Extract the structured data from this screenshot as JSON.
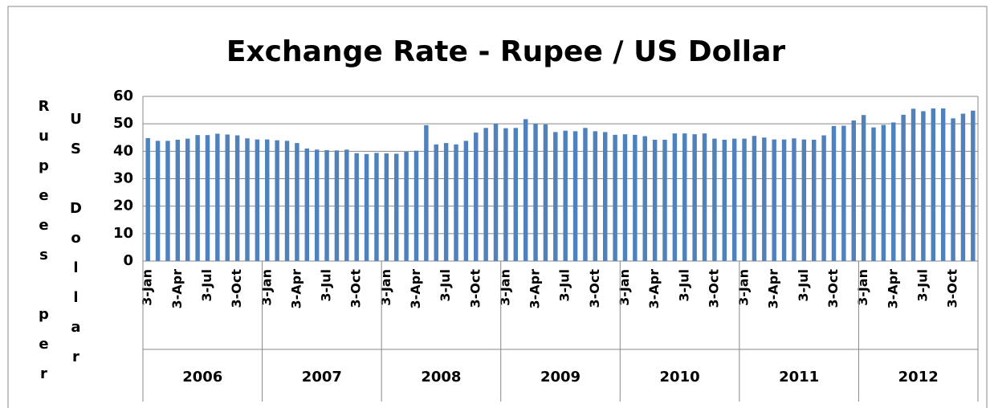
{
  "chart_data": {
    "type": "bar",
    "title": "Exchange Rate - Rupee / US Dollar",
    "ylabel": [
      "Rupees per",
      "US Dollar"
    ],
    "groups": [
      "2006",
      "2007",
      "2008",
      "2009",
      "2010",
      "2011",
      "2012"
    ],
    "categories": [
      "3-Jan",
      null,
      null,
      "3-Apr",
      null,
      null,
      "3-Jul",
      null,
      null,
      "3-Oct",
      null,
      null,
      "3-Jan",
      null,
      null,
      "3-Apr",
      null,
      null,
      "3-Jul",
      null,
      null,
      "3-Oct",
      null,
      null,
      "3-Jan",
      null,
      null,
      "3-Apr",
      null,
      null,
      "3-Jul",
      null,
      null,
      "3-Oct",
      null,
      null,
      "3-Jan",
      null,
      null,
      "3-Apr",
      null,
      null,
      "3-Jul",
      null,
      null,
      "3-Oct",
      null,
      null,
      "3-Jan",
      null,
      null,
      "3-Apr",
      null,
      null,
      "3-Jul",
      null,
      null,
      "3-Oct",
      null,
      null,
      "3-Jan",
      null,
      null,
      "3-Apr",
      null,
      null,
      "3-Jul",
      null,
      null,
      "3-Oct",
      null,
      null,
      "3-Jan",
      null,
      null,
      "3-Apr",
      null,
      null,
      "3-Jul",
      null,
      null,
      "3-Oct",
      null,
      null
    ],
    "values": [
      44.8,
      43.8,
      43.8,
      44.2,
      44.6,
      45.9,
      45.9,
      46.4,
      46.1,
      45.8,
      44.7,
      44.3,
      44.3,
      44.0,
      43.8,
      43.0,
      41.0,
      40.6,
      40.4,
      40.3,
      40.6,
      39.3,
      39.0,
      39.4,
      39.2,
      39.1,
      39.8,
      40.2,
      49.5,
      42.5,
      43.0,
      42.5,
      43.8,
      46.8,
      48.5,
      50.0,
      48.4,
      48.5,
      51.7,
      50.0,
      49.8,
      47.0,
      47.5,
      47.3,
      48.5,
      47.3,
      47.0,
      46.0,
      46.2,
      46.0,
      45.5,
      44.2,
      44.2,
      46.5,
      46.5,
      46.2,
      46.5,
      44.6,
      44.2,
      44.6,
      44.6,
      45.6,
      45.0,
      44.3,
      44.3,
      44.7,
      44.3,
      44.2,
      45.8,
      49.2,
      49.3,
      51.2,
      53.2,
      48.7,
      49.6,
      50.5,
      53.3,
      55.5,
      54.6,
      55.6,
      55.6,
      52.0,
      53.7,
      54.8
    ],
    "color": "#4f81bd",
    "ylim": [
      0,
      60
    ],
    "yticks": [
      0,
      10,
      20,
      30,
      40,
      50,
      60
    ],
    "grid": true
  }
}
